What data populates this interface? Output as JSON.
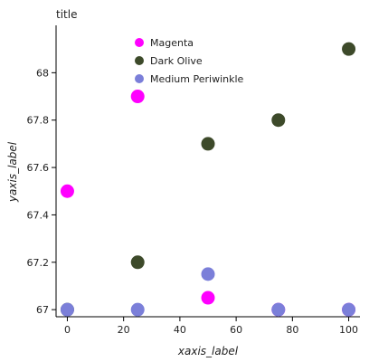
{
  "chart_data": {
    "type": "scatter",
    "title": "title",
    "xlabel": "xaxis_label",
    "ylabel": "yaxis_label",
    "xlim": [
      -4,
      104
    ],
    "ylim": [
      66.97,
      68.2
    ],
    "x_ticks": [
      0,
      20,
      40,
      60,
      80,
      100
    ],
    "y_ticks": [
      67.0,
      67.2,
      67.4,
      67.6,
      67.8,
      68.0
    ],
    "y_tick_labels": [
      "67",
      "67.2",
      "67.4",
      "67.6",
      "67.8",
      "68"
    ],
    "grid": false,
    "legend_position": "top-center",
    "series": [
      {
        "name": "Magenta",
        "color": "#ff00ff",
        "x": [
          0,
          25,
          50,
          75,
          100
        ],
        "y": [
          67.5,
          67.9,
          67.05,
          67.0,
          67.0
        ]
      },
      {
        "name": "Dark Olive",
        "color": "#3d4a2a",
        "x": [
          0,
          25,
          50,
          75,
          100
        ],
        "y": [
          67.0,
          67.2,
          67.7,
          67.8,
          68.1
        ]
      },
      {
        "name": "Medium Periwinkle",
        "color": "#7b7fd9",
        "x": [
          0,
          25,
          50,
          75,
          100
        ],
        "y": [
          67.0,
          67.0,
          67.15,
          67.0,
          67.0
        ]
      }
    ]
  }
}
